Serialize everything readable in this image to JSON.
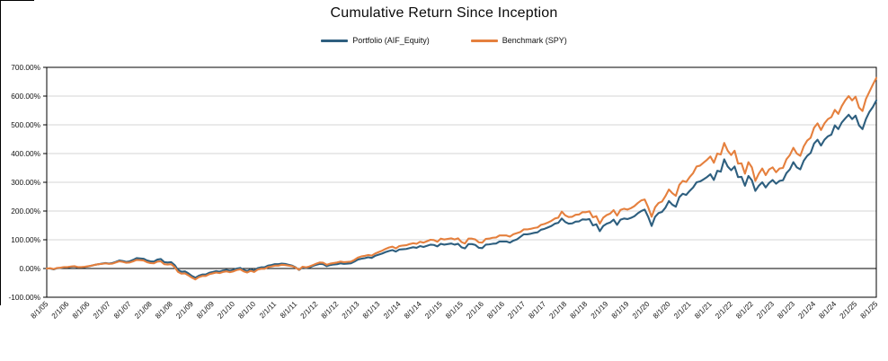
{
  "page": {
    "background": "#FFFFFF"
  },
  "chart_data": {
    "type": "line",
    "title": "Cumulative Return Since Inception",
    "legend_position": "top",
    "grid": "horizontal",
    "y_unit": "%",
    "ylim": [
      -100,
      700
    ],
    "gridline_color": "#D6D6D6",
    "axis_color": "#000000",
    "zero_line_color": "#000000",
    "y_tick_values": [
      -100,
      0,
      100,
      200,
      300,
      400,
      500,
      600,
      700
    ],
    "y_tick_labels": [
      "-100.00%",
      "0.00%",
      "100.00%",
      "200.00%",
      "300.00%",
      "400.00%",
      "500.00%",
      "600.00%",
      "700.00%"
    ],
    "x_ticks_every_n_points": 6,
    "x_tick_labels": [
      "8/1/05",
      "2/1/06",
      "8/1/06",
      "2/1/07",
      "8/1/07",
      "2/1/08",
      "8/1/08",
      "2/1/09",
      "8/1/09",
      "2/1/10",
      "8/1/10",
      "2/1/11",
      "8/1/11",
      "2/1/12",
      "8/1/12",
      "2/1/13",
      "8/1/13",
      "2/1/14",
      "8/1/14",
      "2/1/15",
      "8/1/15",
      "2/1/16",
      "8/1/16",
      "2/1/17",
      "8/1/17",
      "2/1/18",
      "8/1/18",
      "2/1/19",
      "8/1/19",
      "2/1/20",
      "8/1/20",
      "2/1/21",
      "8/1/21",
      "2/1/22",
      "8/1/22",
      "2/1/23",
      "8/1/23",
      "2/1/24",
      "8/1/24",
      "2/1/25",
      "8/1/25"
    ],
    "series": [
      {
        "name": "Portfolio (AIF_Equity)",
        "color": "#2E5F7F",
        "values": [
          0,
          0,
          -3,
          1,
          2,
          4,
          4,
          6,
          7,
          4,
          4,
          5,
          7,
          10,
          13,
          15,
          17,
          19,
          17,
          19,
          23,
          28,
          26,
          23,
          25,
          30,
          36,
          35,
          34,
          28,
          25,
          24,
          31,
          33,
          22,
          21,
          22,
          12,
          -5,
          -11,
          -10,
          -17,
          -26,
          -32,
          -25,
          -21,
          -21,
          -15,
          -12,
          -9,
          -11,
          -7,
          -5,
          -8,
          -5,
          0,
          2,
          -5,
          -9,
          -3,
          -7,
          1,
          4,
          4,
          10,
          12,
          15,
          15,
          17,
          16,
          13,
          10,
          4,
          -5,
          4,
          2,
          4,
          9,
          13,
          16,
          15,
          8,
          12,
          14,
          15,
          18,
          16,
          17,
          18,
          24,
          31,
          34,
          36,
          39,
          37,
          44,
          48,
          52,
          57,
          61,
          64,
          59,
          66,
          67,
          68,
          71,
          74,
          72,
          78,
          75,
          79,
          83,
          82,
          77,
          86,
          83,
          85,
          87,
          83,
          86,
          74,
          70,
          85,
          85,
          82,
          72,
          71,
          83,
          84,
          86,
          87,
          94,
          94,
          94,
          90,
          97,
          101,
          110,
          119,
          119,
          121,
          124,
          126,
          135,
          138,
          143,
          148,
          156,
          159,
          174,
          162,
          156,
          157,
          163,
          164,
          171,
          170,
          172,
          150,
          154,
          130,
          148,
          156,
          160,
          170,
          152,
          170,
          174,
          172,
          176,
          182,
          192,
          200,
          205,
          180,
          148,
          180,
          193,
          197,
          212,
          235,
          222,
          215,
          248,
          260,
          256,
          270,
          282,
          300,
          303,
          310,
          318,
          328,
          308,
          340,
          337,
          380,
          355,
          342,
          355,
          318,
          319,
          288,
          322,
          307,
          270,
          288,
          300,
          282,
          298,
          308,
          295,
          305,
          307,
          332,
          345,
          370,
          352,
          345,
          375,
          392,
          402,
          435,
          448,
          428,
          448,
          460,
          466,
          498,
          485,
          508,
          522,
          535,
          520,
          532,
          498,
          485,
          520,
          545,
          562,
          585
        ]
      },
      {
        "name": "Benchmark (SPY)",
        "color": "#E5803E",
        "values": [
          0,
          1,
          -2,
          2,
          3,
          5,
          5,
          7,
          8,
          5,
          5,
          6,
          8,
          10,
          13,
          15,
          16,
          18,
          16,
          17,
          21,
          25,
          23,
          20,
          21,
          25,
          30,
          29,
          28,
          22,
          19,
          18,
          24,
          25,
          15,
          14,
          15,
          5,
          -12,
          -18,
          -17,
          -24,
          -32,
          -38,
          -30,
          -26,
          -26,
          -20,
          -17,
          -14,
          -16,
          -12,
          -10,
          -13,
          -10,
          -5,
          -3,
          -10,
          -14,
          -8,
          -12,
          -4,
          -1,
          -1,
          5,
          7,
          10,
          10,
          13,
          12,
          10,
          8,
          3,
          -4,
          6,
          4,
          7,
          12,
          17,
          21,
          20,
          13,
          17,
          19,
          21,
          24,
          22,
          23,
          24,
          30,
          38,
          42,
          44,
          47,
          45,
          52,
          57,
          62,
          68,
          73,
          76,
          70,
          78,
          80,
          81,
          85,
          88,
          86,
          93,
          90,
          95,
          100,
          99,
          93,
          104,
          101,
          103,
          105,
          101,
          105,
          92,
          87,
          104,
          104,
          101,
          91,
          90,
          103,
          104,
          107,
          108,
          115,
          115,
          115,
          111,
          119,
          123,
          127,
          136,
          136,
          138,
          141,
          143,
          152,
          155,
          160,
          166,
          174,
          177,
          198,
          185,
          179,
          180,
          187,
          188,
          196,
          196,
          199,
          178,
          182,
          156,
          177,
          186,
          191,
          203,
          184,
          204,
          208,
          205,
          210,
          217,
          228,
          237,
          240,
          213,
          180,
          213,
          228,
          233,
          252,
          275,
          262,
          253,
          291,
          305,
          301,
          318,
          332,
          355,
          358,
          368,
          378,
          390,
          368,
          400,
          397,
          437,
          410,
          395,
          410,
          365,
          366,
          330,
          370,
          352,
          305,
          330,
          348,
          325,
          345,
          352,
          335,
          348,
          350,
          380,
          395,
          420,
          400,
          392,
          425,
          445,
          455,
          490,
          505,
          482,
          505,
          520,
          527,
          552,
          538,
          565,
          585,
          600,
          585,
          598,
          560,
          548,
          590,
          615,
          640,
          663
        ]
      }
    ]
  }
}
